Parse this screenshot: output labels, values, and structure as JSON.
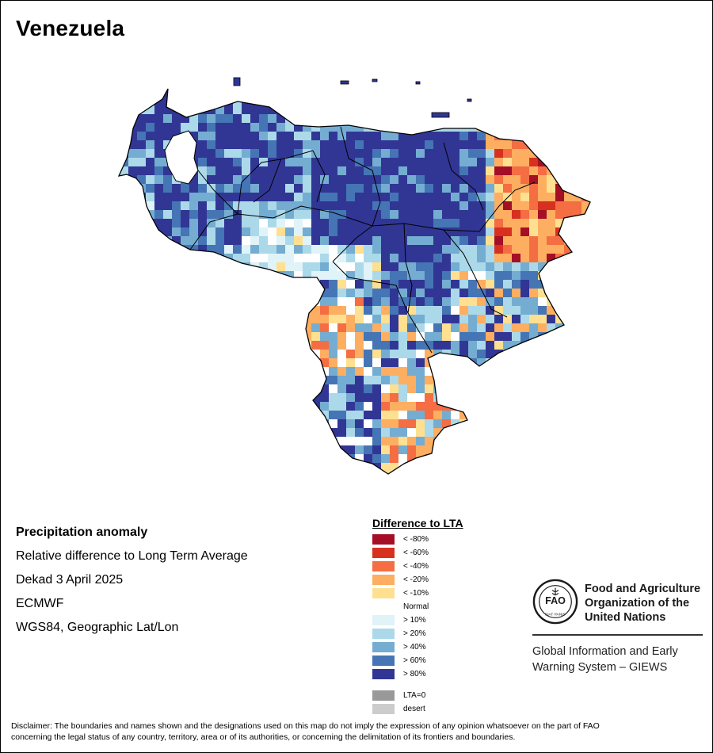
{
  "map": {
    "title": "Venezuela",
    "country": "Venezuela"
  },
  "info": {
    "heading": "Precipitation anomaly",
    "line1": "Relative difference to Long Term Average",
    "line2": "Dekad 3 April 2025",
    "line3": "ECMWF",
    "line4": "WGS84, Geographic Lat/Lon"
  },
  "legend": {
    "title": "Difference to LTA",
    "items": [
      {
        "label": "< -80%",
        "color": "#a50f26"
      },
      {
        "label": "< -60%",
        "color": "#d7301f"
      },
      {
        "label": "< -40%",
        "color": "#f46d43"
      },
      {
        "label": "< -20%",
        "color": "#fdae61"
      },
      {
        "label": "< -10%",
        "color": "#fee090"
      },
      {
        "label": "Normal",
        "color": "#ffffff"
      },
      {
        "label": "> 10%",
        "color": "#e0f3f8"
      },
      {
        "label": "> 20%",
        "color": "#abd9e9"
      },
      {
        "label": "> 40%",
        "color": "#74add1"
      },
      {
        "label": "> 60%",
        "color": "#4575b4"
      },
      {
        "label": "> 80%",
        "color": "#313695"
      }
    ],
    "extra": [
      {
        "label": "LTA=0",
        "color": "#999999"
      },
      {
        "label": "desert",
        "color": "#cccccc"
      }
    ]
  },
  "org": {
    "name_line1": "Food and Agriculture",
    "name_line2": "Organization of the",
    "name_line3": "United Nations",
    "sub_line1": "Global Information and Early",
    "sub_line2": "Warning System – GIEWS",
    "logo_text_top": "FIAT PANIS"
  },
  "disclaimer": {
    "line1": "Disclaimer: The boundaries and names shown and the designations used on this map do not imply the expression of any opinion whatsoever on the part of FAO",
    "line2": "concerning the legal status of any country, territory, area or of its authorities, or concerning the delimitation of its frontiers and boundaries."
  }
}
